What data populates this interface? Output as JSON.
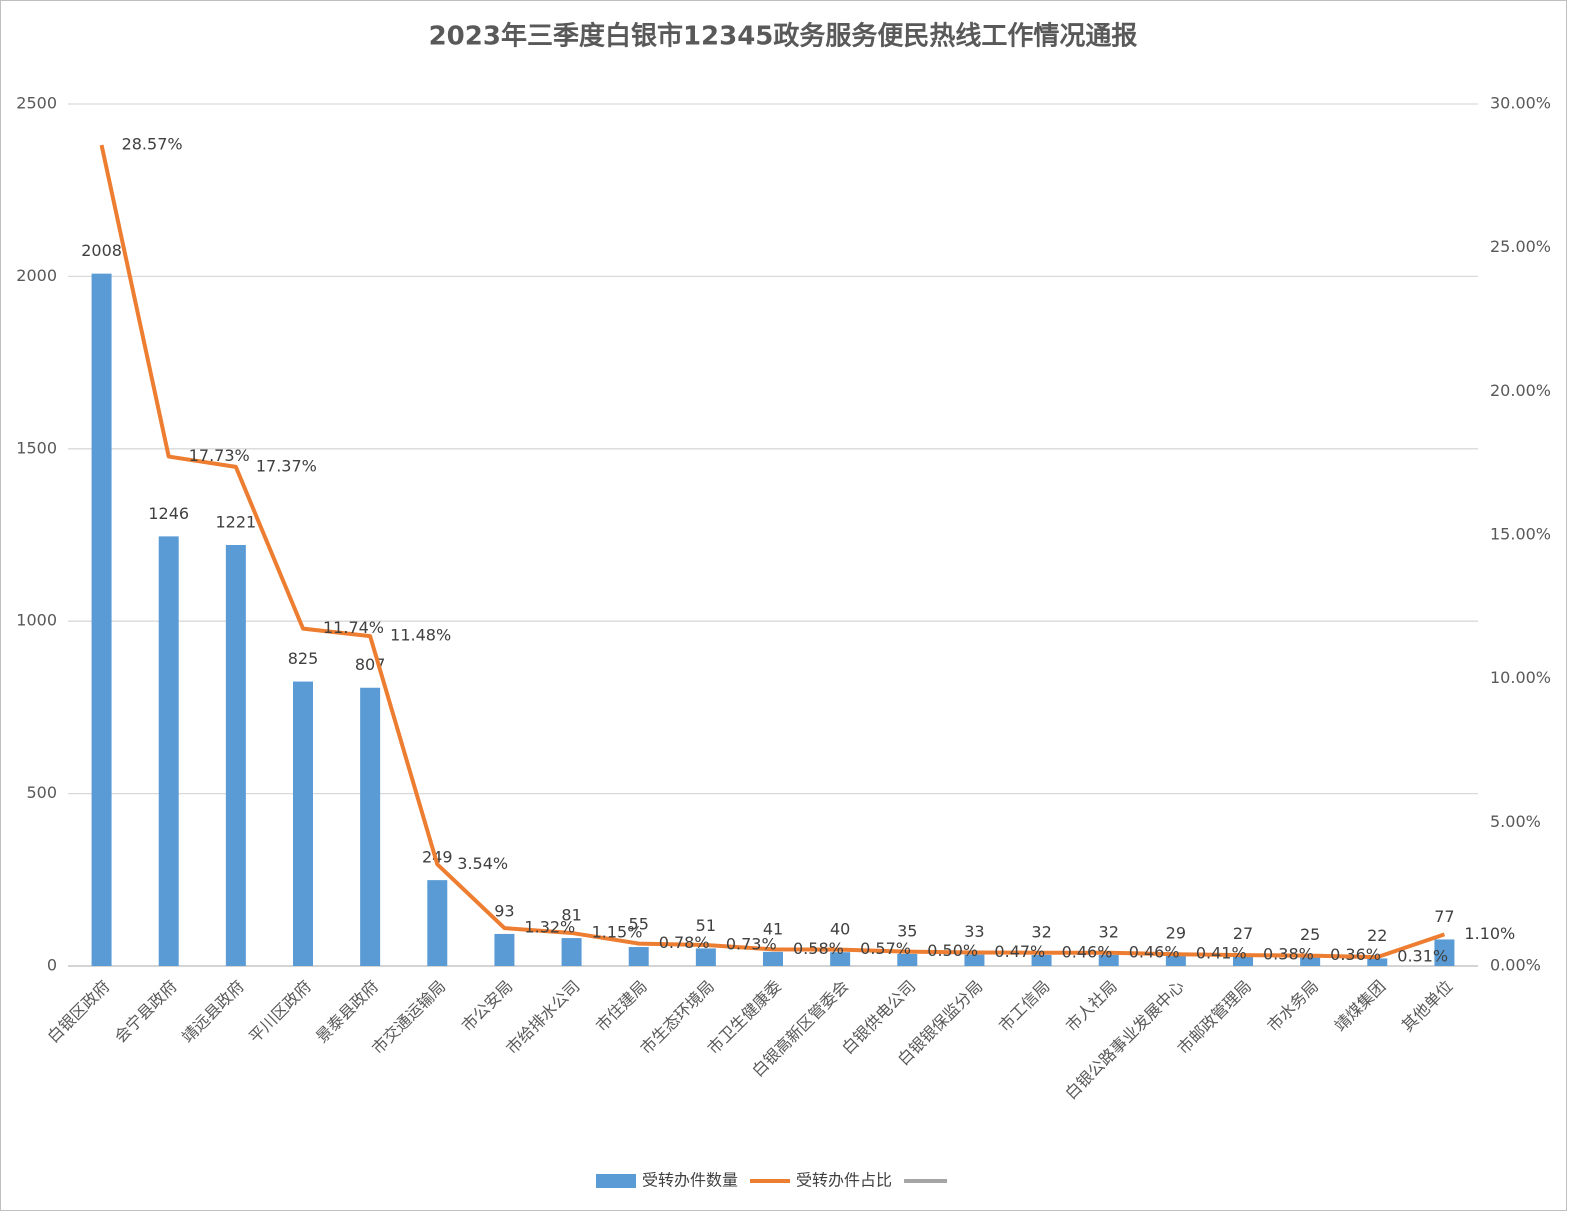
{
  "chart_data": {
    "type": "combo",
    "title": "2023年三季度白银市12345政务服务便民热线工作情况通报",
    "categories": [
      "白银区政府",
      "会宁县政府",
      "靖远县政府",
      "平川区政府",
      "景泰县政府",
      "市交通运输局",
      "市公安局",
      "市给排水公司",
      "市住建局",
      "市生态环境局",
      "市卫生健康委",
      "白银高新区管委会",
      "白银供电公司",
      "白银银保监分局",
      "市工信局",
      "市人社局",
      "白银公路事业发展中心",
      "市邮政管理局",
      "市水务局",
      "靖煤集团",
      "其他单位"
    ],
    "series": [
      {
        "name": "受转办件数量",
        "type": "bar",
        "color": "#5b9bd5",
        "axis": "y",
        "values": [
          2008,
          1246,
          1221,
          825,
          807,
          249,
          93,
          81,
          55,
          51,
          41,
          40,
          35,
          33,
          32,
          32,
          29,
          27,
          25,
          22,
          77
        ]
      },
      {
        "name": "受转办件占比",
        "type": "line",
        "color": "#ed7d31",
        "axis": "y2",
        "values": [
          28.57,
          17.73,
          17.37,
          11.74,
          11.48,
          3.54,
          1.32,
          1.15,
          0.78,
          0.73,
          0.58,
          0.57,
          0.5,
          0.47,
          0.46,
          0.46,
          0.41,
          0.38,
          0.36,
          0.31,
          1.1
        ],
        "value_labels": [
          "28.57%",
          "17.73%",
          "17.37%",
          "11.74%",
          "11.48%",
          "3.54%",
          "1.32%",
          "1.15%",
          "0.78%",
          "0.73%",
          "0.58%",
          "0.57%",
          "0.50%",
          "0.47%",
          "0.46%",
          "0.46%",
          "0.41%",
          "0.38%",
          "0.36%",
          "0.31%",
          "1.10%"
        ]
      }
    ],
    "ylim": [
      0,
      2500
    ],
    "yticks": [
      0,
      500,
      1000,
      1500,
      2000,
      2500
    ],
    "y2lim": [
      0,
      30
    ],
    "y2ticks": [
      {
        "value": 0,
        "label": "0.00%"
      },
      {
        "value": 5,
        "label": "5.00%"
      },
      {
        "value": 10,
        "label": "10.00%"
      },
      {
        "value": 15,
        "label": "15.00%"
      },
      {
        "value": 20,
        "label": "20.00%"
      },
      {
        "value": 25,
        "label": "25.00%"
      },
      {
        "value": 30,
        "label": "30.00%"
      }
    ],
    "grid": true,
    "legend": "bottom"
  }
}
